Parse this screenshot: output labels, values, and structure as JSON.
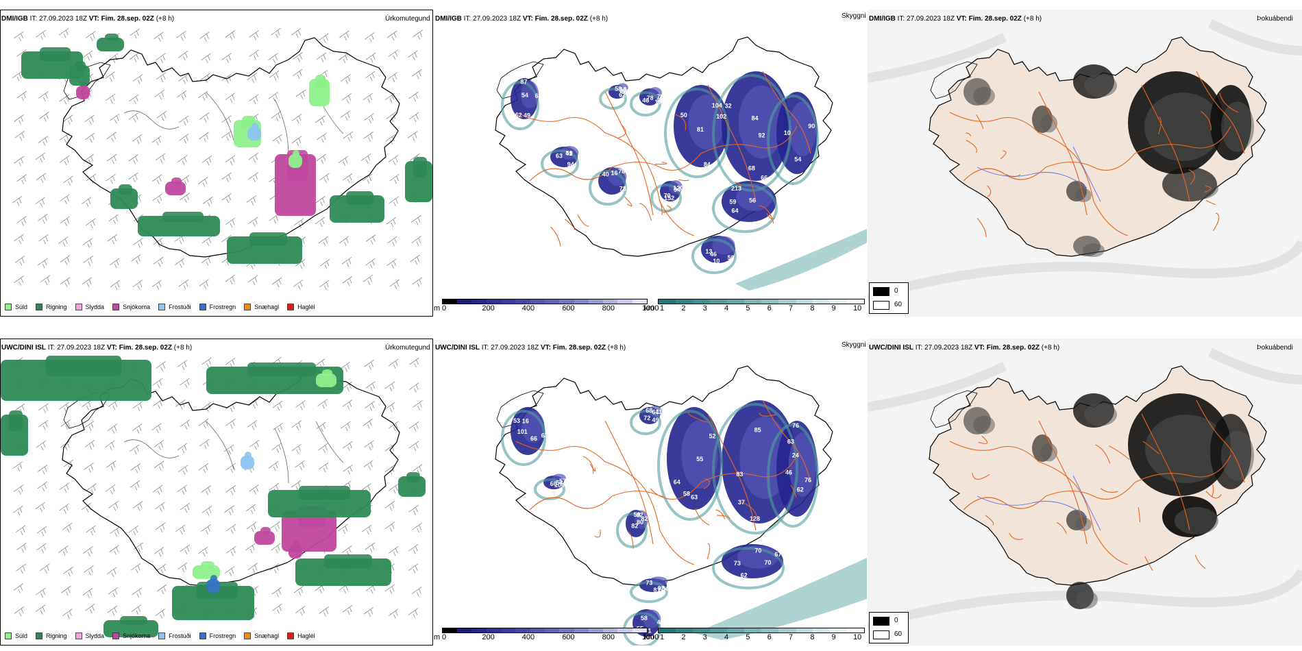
{
  "panels": [
    {
      "model": "DMI/IGB",
      "it_label": "IT:",
      "it": "27.09.2023 18Z",
      "vt_label": "VT:",
      "vt": "Fim. 28.sep. 02Z",
      "lead": "(+8 h)",
      "field": "Úrkomutegund"
    },
    {
      "model": "DMI/IGB",
      "it_label": "IT:",
      "it": "27.09.2023 18Z",
      "vt_label": "VT:",
      "vt": "Fim. 28.sep. 02Z",
      "lead": "(+8 h)",
      "field": "Skyggni",
      "numbers": [
        "87",
        "58",
        "78",
        "81",
        "92",
        "10",
        "40",
        "120",
        "13",
        "41",
        "56",
        "62",
        "58",
        "78",
        "84",
        "66",
        "54",
        "78",
        "94",
        "46",
        "63",
        "59",
        "61",
        "56",
        "46",
        "50",
        "84",
        "90",
        "73",
        "70",
        "50",
        "59",
        "64",
        "54",
        "62",
        "80",
        "102",
        "68",
        "58",
        "16",
        "152",
        "10",
        "94",
        "213",
        "49",
        "32",
        "19",
        "104",
        "32"
      ]
    },
    {
      "model": "DMI/IGB",
      "it_label": "IT:",
      "it": "27.09.2023 18Z",
      "vt_label": "VT:",
      "vt": "Fim. 28.sep. 02Z",
      "lead": "(+8 h)",
      "field": "Þokuábendi"
    },
    {
      "model": "UWC/DINI ISL",
      "it_label": "IT:",
      "it": "27.09.2023 18Z",
      "vt_label": "VT:",
      "vt": "Fim. 28.sep. 02Z",
      "lead": "(+8 h)",
      "field": "Úrkomutegund"
    },
    {
      "model": "UWC/DINI ISL",
      "it_label": "IT:",
      "it": "27.09.2023 18Z",
      "vt_label": "VT:",
      "vt": "Fim. 28.sep. 02Z",
      "lead": "(+8 h)",
      "field": "Skyggni",
      "numbers": [
        "63",
        "49",
        "52",
        "85",
        "63",
        "62",
        "80",
        "54",
        "49",
        "54",
        "53",
        "68",
        "64",
        "46",
        "76",
        "73",
        "82",
        "97",
        "58",
        "60",
        "66",
        "64",
        "63",
        "128",
        "76",
        "70",
        "50",
        "52",
        "71",
        "57",
        "101",
        "113",
        "58",
        "83",
        "62",
        "67",
        "82",
        "81",
        "55",
        "104",
        "16",
        "72",
        "55",
        "37",
        "24",
        "70",
        "32",
        "73"
      ]
    },
    {
      "model": "UWC/DINI ISL",
      "it_label": "IT:",
      "it": "27.09.2023 18Z",
      "vt_label": "VT:",
      "vt": "Fim. 28.sep. 02Z",
      "lead": "(+8 h)",
      "field": "Þokuábendi"
    }
  ],
  "precip_legend": [
    {
      "label": "Súld",
      "color": "#8ef08a"
    },
    {
      "label": "Rigning",
      "color": "#2e8b57"
    },
    {
      "label": "Slydda",
      "color": "#f4a6d7"
    },
    {
      "label": "Snjókoma",
      "color": "#c0479e"
    },
    {
      "label": "Frostúði",
      "color": "#8fc3f0"
    },
    {
      "label": "Frostregn",
      "color": "#3574c4"
    },
    {
      "label": "Snæhagl",
      "color": "#f08c1e"
    },
    {
      "label": "Haglél",
      "color": "#e01a1a"
    }
  ],
  "height_bar": {
    "unit": "m",
    "ticks": [
      "0",
      "200",
      "400",
      "600",
      "800",
      "1000"
    ],
    "colors": [
      "#000000",
      "#1a1a7a",
      "#25258f",
      "#2f2f9f",
      "#3b3ba8",
      "#4747ae",
      "#5555b5",
      "#6464bc",
      "#7474c4",
      "#8787cc",
      "#9b9bd4",
      "#b0b0dd",
      "#c8c8e8",
      "#e0e0f3"
    ]
  },
  "visibility_bar": {
    "unit": "km",
    "ticks": [
      "1",
      "2",
      "3",
      "4",
      "5",
      "6",
      "7",
      "8",
      "9",
      "10"
    ],
    "colors": [
      "#1e7a7a",
      "#2e8585",
      "#3f9191",
      "#519d9d",
      "#64a9a9",
      "#78b5b5",
      "#8dc1c1",
      "#a3cdcd",
      "#bad9d9",
      "#d1e6e6",
      "#e8f2f2",
      "#ffffff"
    ]
  },
  "fog_legend": [
    {
      "label": "0",
      "color": "#000000"
    },
    {
      "label": "60",
      "color": "#ffffff"
    }
  ],
  "colors": {
    "coast": "#000000",
    "roads": "#e8641e",
    "rivers": "#5a78e0",
    "land_fog": "#f2e4d8",
    "sea_fog": "#eeeeee",
    "barbs": "#888888"
  }
}
